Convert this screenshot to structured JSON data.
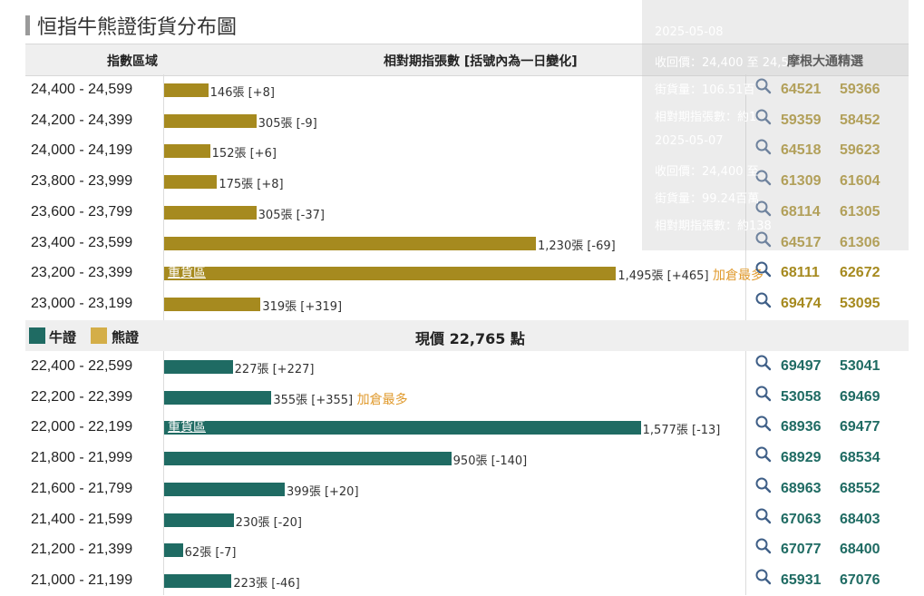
{
  "title": "恒指牛熊證街貨分布圖",
  "header": {
    "range": "指數區域",
    "count": "相對期指張數 [括號內為一日變化]",
    "pick": "摩根大通精選"
  },
  "colors": {
    "bear": "#a68a1f",
    "bull": "#1f6b63",
    "bear_legend": "#d4ae48",
    "add": "#e09a2d"
  },
  "legend": {
    "bull": "牛證",
    "bear": "熊證"
  },
  "price": {
    "prefix": "現價",
    "value": "22,765",
    "suffix": "點"
  },
  "heavy_label": "重貨區",
  "add_label": "加倉最多",
  "tooltip": {
    "lines": [
      "2025-05-08",
      "收回價：24,400 至 24,5",
      "街貨量：106.51百",
      "相對期指張數：約1",
      "2025-05-07",
      "收回價：24,400 至",
      "街貨量：99.24百萬",
      "相對期指張數：約138"
    ]
  },
  "chart_data": {
    "type": "bar",
    "title": "恒指牛熊證街貨分布圖",
    "xlabel": "相對期指張數 [括號內為一日變化]",
    "ylabel": "指數區域",
    "xlim": [
      0,
      1650
    ],
    "bear_rows": [
      {
        "range": "24,400 - 24,599",
        "value": 146,
        "label": "146張 [+8]",
        "codes": [
          "64521",
          "59366"
        ]
      },
      {
        "range": "24,200 - 24,399",
        "value": 305,
        "label": "305張 [-9]",
        "codes": [
          "59359",
          "58452"
        ]
      },
      {
        "range": "24,000 - 24,199",
        "value": 152,
        "label": "152張 [+6]",
        "codes": [
          "64518",
          "59623"
        ]
      },
      {
        "range": "23,800 - 23,999",
        "value": 175,
        "label": "175張 [+8]",
        "codes": [
          "61309",
          "61604"
        ]
      },
      {
        "range": "23,600 - 23,799",
        "value": 305,
        "label": "305張 [-37]",
        "codes": [
          "68114",
          "61305"
        ]
      },
      {
        "range": "23,400 - 23,599",
        "value": 1230,
        "label": "1,230張 [-69]",
        "codes": [
          "64517",
          "61306"
        ]
      },
      {
        "range": "23,200 - 23,399",
        "value": 1495,
        "label": "1,495張 [+465]",
        "heavy": true,
        "add": true,
        "codes": [
          "68111",
          "62672"
        ]
      },
      {
        "range": "23,000 - 23,199",
        "value": 319,
        "label": "319張 [+319]",
        "codes": [
          "69474",
          "53095"
        ]
      }
    ],
    "bull_rows": [
      {
        "range": "22,400 - 22,599",
        "value": 227,
        "label": "227張 [+227]",
        "codes": [
          "69497",
          "53041"
        ]
      },
      {
        "range": "22,200 - 22,399",
        "value": 355,
        "label": "355張 [+355]",
        "add": true,
        "codes": [
          "53058",
          "69469"
        ]
      },
      {
        "range": "22,000 - 22,199",
        "value": 1577,
        "label": "1,577張 [-13]",
        "heavy": true,
        "codes": [
          "68936",
          "69477"
        ]
      },
      {
        "range": "21,800 - 21,999",
        "value": 950,
        "label": "950張 [-140]",
        "codes": [
          "68929",
          "68534"
        ]
      },
      {
        "range": "21,600 - 21,799",
        "value": 399,
        "label": "399張 [+20]",
        "codes": [
          "68963",
          "68552"
        ]
      },
      {
        "range": "21,400 - 21,599",
        "value": 230,
        "label": "230張 [-20]",
        "codes": [
          "67063",
          "68403"
        ]
      },
      {
        "range": "21,200 - 21,399",
        "value": 62,
        "label": "62張 [-7]",
        "codes": [
          "67077",
          "68400"
        ]
      },
      {
        "range": "21,000 - 21,199",
        "value": 223,
        "label": "223張 [-46]",
        "codes": [
          "65931",
          "67076"
        ]
      }
    ]
  }
}
